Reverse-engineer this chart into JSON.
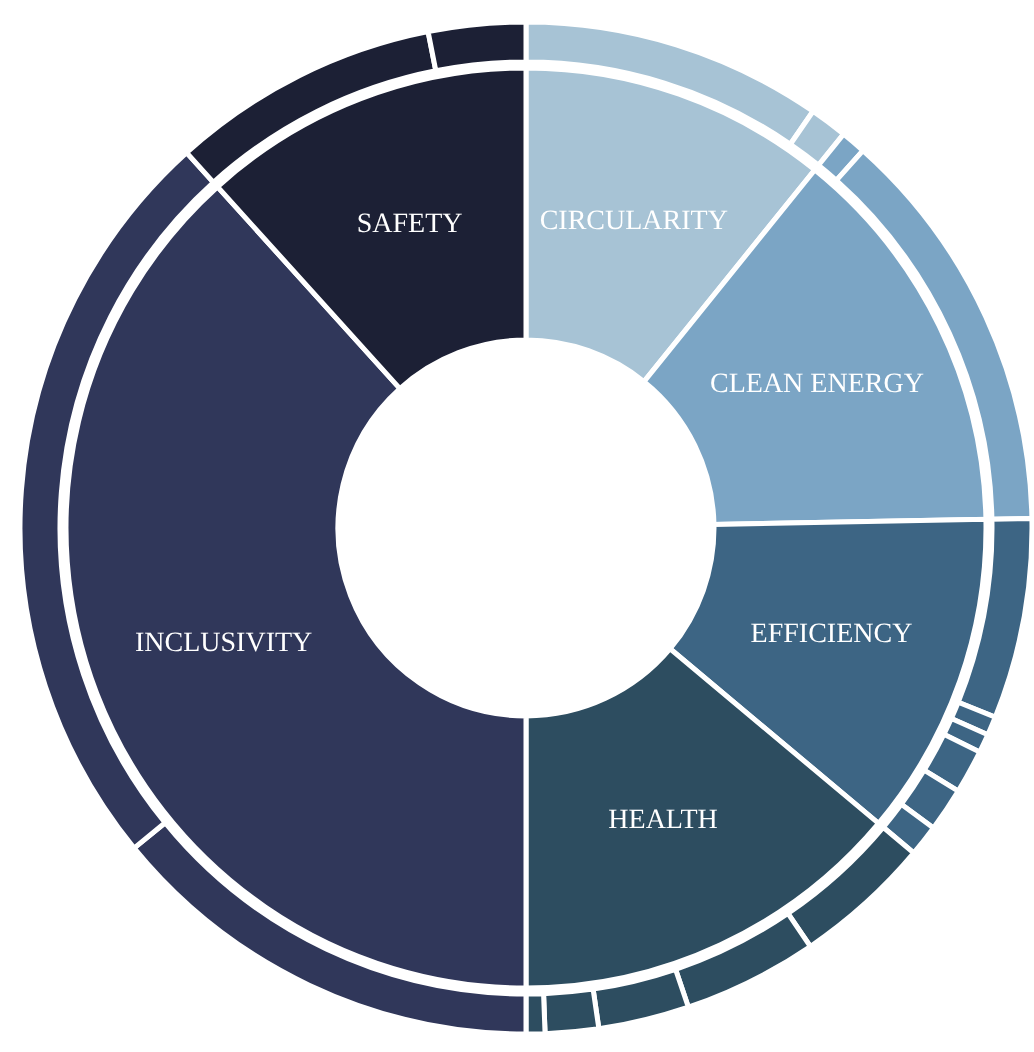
{
  "chart_data": [
    {
      "type": "donut",
      "categories": [
        "CIRCULARITY",
        "CLEAN ENERGY",
        "EFFICIENCY",
        "HEALTH",
        "INCLUSIVITY",
        "SAFETY"
      ],
      "values": [
        10.8,
        13.9,
        11.4,
        13.9,
        38.3,
        11.7
      ],
      "colors": [
        "#a7c3d5",
        "#7ba5c5",
        "#3d6584",
        "#2d4d60",
        "#30375a",
        "#1c2035"
      ]
    },
    {
      "type": "donut",
      "categories": [
        null,
        null,
        null,
        null,
        null,
        null,
        null,
        null,
        null,
        null,
        null,
        null,
        null,
        null,
        null,
        null,
        null,
        null,
        null
      ],
      "values": [
        9.6,
        1.2,
        0.8,
        13.1,
        6.4,
        0.6,
        0.6,
        1.4,
        1.4,
        1.0,
        4.4,
        4.3,
        2.9,
        1.7,
        0.6,
        14.1,
        24.2,
        8.6,
        3.1
      ],
      "colors": [
        "#a7c3d5",
        "#a7c3d5",
        "#7ba5c5",
        "#7ba5c5",
        "#3d6584",
        "#3d6584",
        "#3d6584",
        "#3d6584",
        "#3d6584",
        "#3d6584",
        "#2d4d60",
        "#2d4d60",
        "#2d4d60",
        "#2d4d60",
        "#2d4d60",
        "#30375a",
        "#30375a",
        "#1c2035",
        "#1c2035"
      ]
    }
  ]
}
